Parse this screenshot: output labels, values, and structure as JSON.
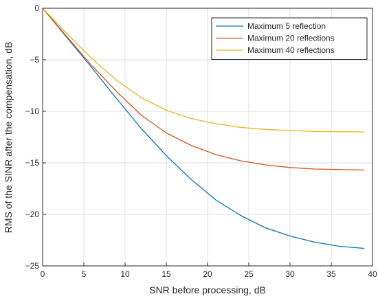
{
  "chart_data": {
    "type": "line",
    "title": "",
    "xlabel": "SNR before processing, dB",
    "ylabel": "RMS of the SINR after the compensation, dB",
    "xlim": [
      0,
      40
    ],
    "ylim": [
      -25,
      0
    ],
    "xticks": [
      0,
      5,
      10,
      15,
      20,
      25,
      30,
      35,
      40
    ],
    "xtick_labels": [
      "0",
      "5",
      "10",
      "15",
      "20",
      "25",
      "30",
      "35",
      "40"
    ],
    "yticks": [
      0,
      -5,
      -10,
      -15,
      -20,
      -25
    ],
    "ytick_labels": [
      "0",
      "−5",
      "−10",
      "−15",
      "−20",
      "−25"
    ],
    "grid": true,
    "legend_position": "top-right",
    "x": [
      0,
      3,
      6,
      9,
      12,
      15,
      18,
      21,
      24,
      27,
      30,
      33,
      36,
      39
    ],
    "series": [
      {
        "name": "Maximum 5 reflection",
        "color": "#0072BD",
        "values": [
          0,
          -2.9,
          -5.8,
          -8.8,
          -11.7,
          -14.3,
          -16.6,
          -18.6,
          -20.1,
          -21.3,
          -22.1,
          -22.7,
          -23.1,
          -23.3
        ]
      },
      {
        "name": "Maximum 20 reflections",
        "color": "#D95319",
        "values": [
          0,
          -2.8,
          -5.6,
          -8.1,
          -10.4,
          -12.1,
          -13.3,
          -14.2,
          -14.8,
          -15.2,
          -15.45,
          -15.6,
          -15.65,
          -15.7
        ]
      },
      {
        "name": "Maximum 40 reflections",
        "color": "#EDB120",
        "values": [
          0,
          -2.5,
          -4.9,
          -7.0,
          -8.7,
          -9.9,
          -10.7,
          -11.2,
          -11.55,
          -11.75,
          -11.87,
          -11.95,
          -11.98,
          -12.0
        ]
      }
    ]
  }
}
